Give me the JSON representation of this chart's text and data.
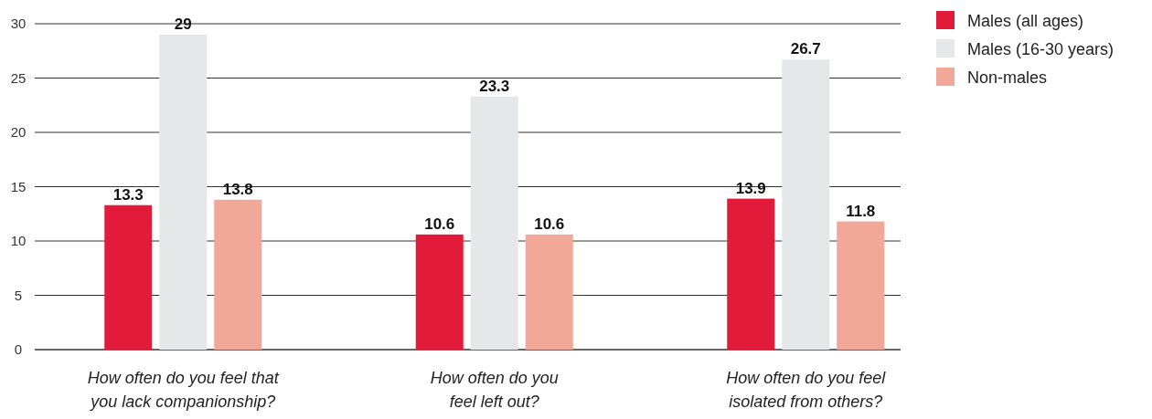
{
  "chart_data": {
    "type": "bar",
    "categories": [
      "How often do you feel that\nyou lack companionship?",
      "How often do you\nfeel left out?",
      "How often do you feel\nisolated from others?"
    ],
    "series": [
      {
        "name": "Males (all ages)",
        "color": "#e31b3a",
        "values": [
          13.3,
          10.6,
          13.9
        ]
      },
      {
        "name": "Males (16-30 years)",
        "color": "#e6e7e9",
        "values": [
          29,
          23.3,
          26.7
        ]
      },
      {
        "name": "Non-males",
        "color": "#f1a898",
        "values": [
          13.8,
          10.6,
          11.8
        ]
      }
    ],
    "ylim": [
      0,
      30
    ],
    "yticks": [
      0,
      5,
      10,
      15,
      20,
      25,
      30
    ],
    "grid": "y",
    "legend": "top right",
    "data_labels": true
  }
}
